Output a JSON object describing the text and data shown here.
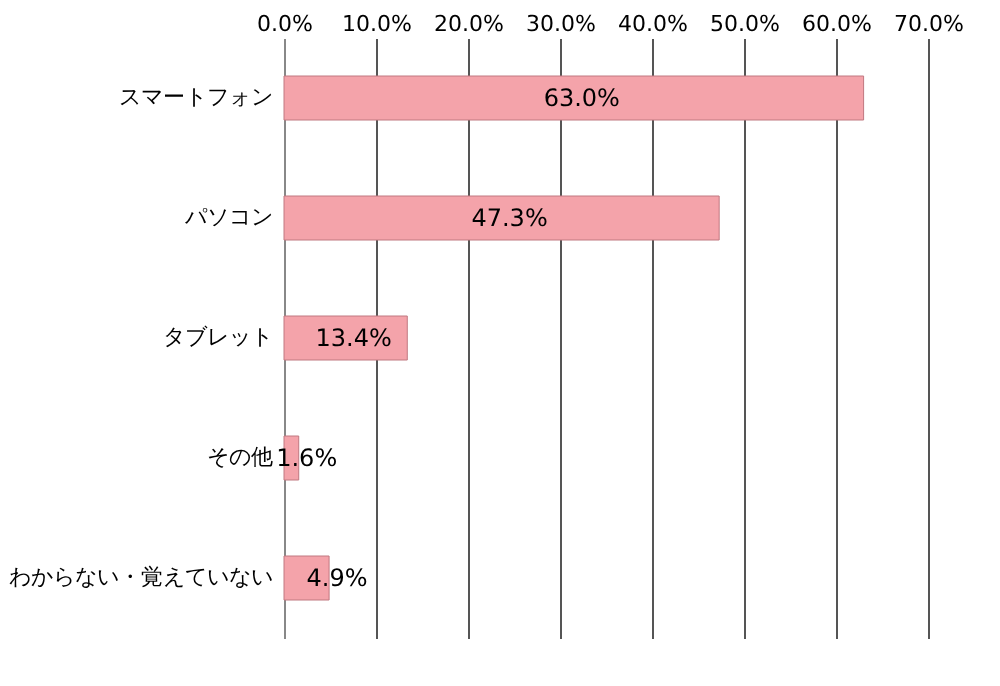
{
  "chart_data": {
    "type": "bar",
    "orientation": "horizontal",
    "categories": [
      "スマートフォン",
      "パソコン",
      "タブレット",
      "その他",
      "わからない・覚えていない"
    ],
    "values": [
      63.0,
      47.3,
      13.4,
      1.6,
      4.9
    ],
    "value_labels": [
      "63.0%",
      "47.3%",
      "13.4%",
      "1.6%",
      "4.9%"
    ],
    "color": "#f4a3aa",
    "xlim": [
      0,
      70
    ],
    "xticks": [
      {
        "value": 0,
        "label": "0.0%"
      },
      {
        "value": 10,
        "label": "10.0%"
      },
      {
        "value": 20,
        "label": "20.0%"
      },
      {
        "value": 30,
        "label": "30.0%"
      },
      {
        "value": 40,
        "label": "40.0%"
      },
      {
        "value": 50,
        "label": "50.0%"
      },
      {
        "value": 60,
        "label": "60.0%"
      },
      {
        "value": 70,
        "label": "70.0%"
      }
    ],
    "grid": "x"
  }
}
